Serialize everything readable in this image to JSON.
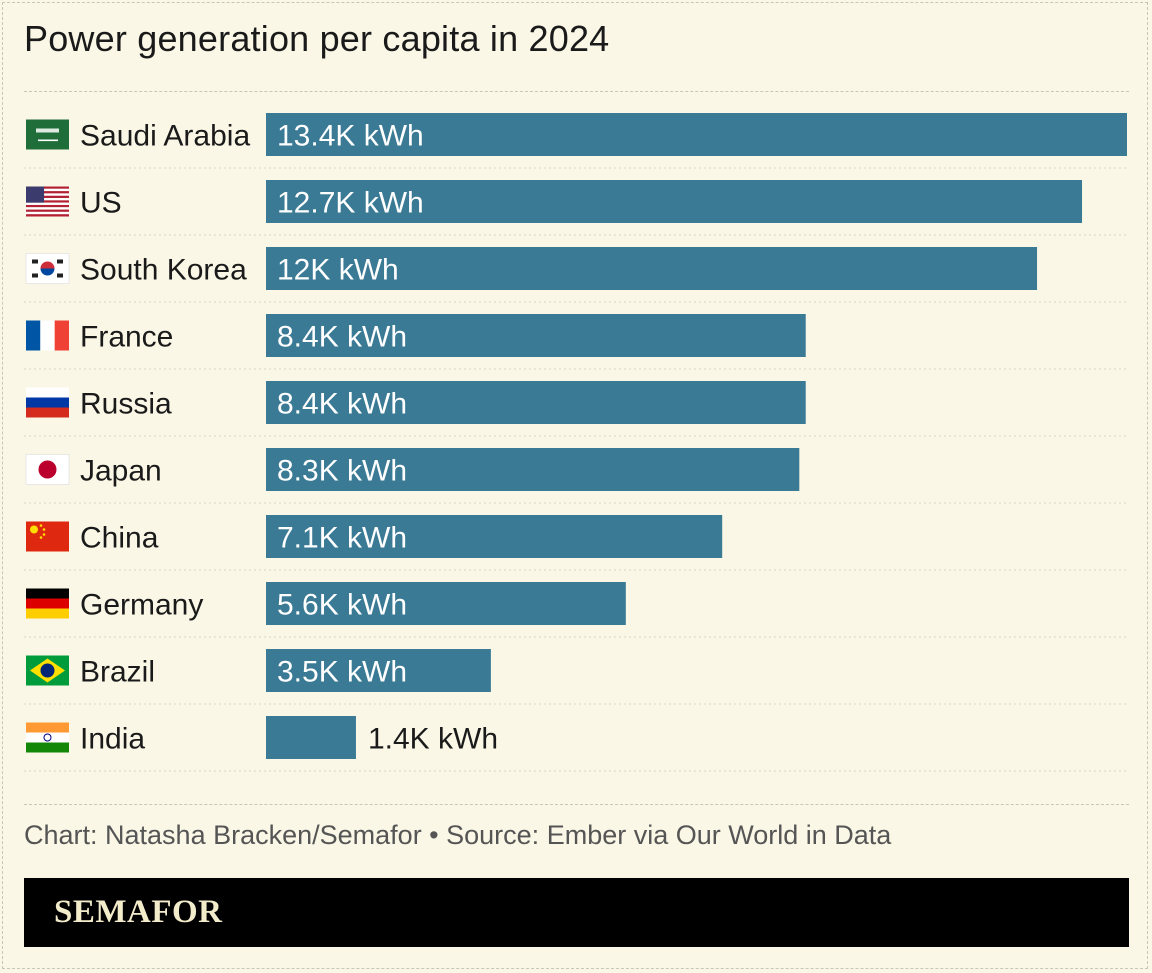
{
  "header": {
    "title": "Power generation per capita in 2024"
  },
  "chart_data": {
    "type": "bar",
    "orientation": "horizontal",
    "title": "Power generation per capita in 2024",
    "unit": "kWh",
    "categories": [
      "Saudi Arabia",
      "US",
      "South Korea",
      "France",
      "Russia",
      "Japan",
      "China",
      "Germany",
      "Brazil",
      "India"
    ],
    "values": [
      13.4,
      12.7,
      12.0,
      8.4,
      8.4,
      8.3,
      7.1,
      5.6,
      3.5,
      1.4
    ],
    "labels": [
      "13.4K kWh",
      "12.7K kWh",
      "12K kWh",
      "8.4K kWh",
      "8.4K kWh",
      "8.3K kWh",
      "7.1K kWh",
      "5.6K kWh",
      "3.5K kWh",
      "1.4K kWh"
    ],
    "flags": [
      "saudi-arabia-flag-icon",
      "us-flag-icon",
      "south-korea-flag-icon",
      "france-flag-icon",
      "russia-flag-icon",
      "japan-flag-icon",
      "china-flag-icon",
      "germany-flag-icon",
      "brazil-flag-icon",
      "india-flag-icon"
    ],
    "xlim": [
      0,
      13.4
    ],
    "bar_color": "#3a7a95",
    "xlabel": "",
    "ylabel": ""
  },
  "footer": {
    "source": "Chart: Natasha Bracken/Semafor • Source: Ember via Our World in Data",
    "brand": "SEMAFOR"
  },
  "colors": {
    "background": "#faf7e6",
    "bar": "#3a7a95",
    "brand_bar": "#000000",
    "brand_text": "#f3eccb"
  }
}
